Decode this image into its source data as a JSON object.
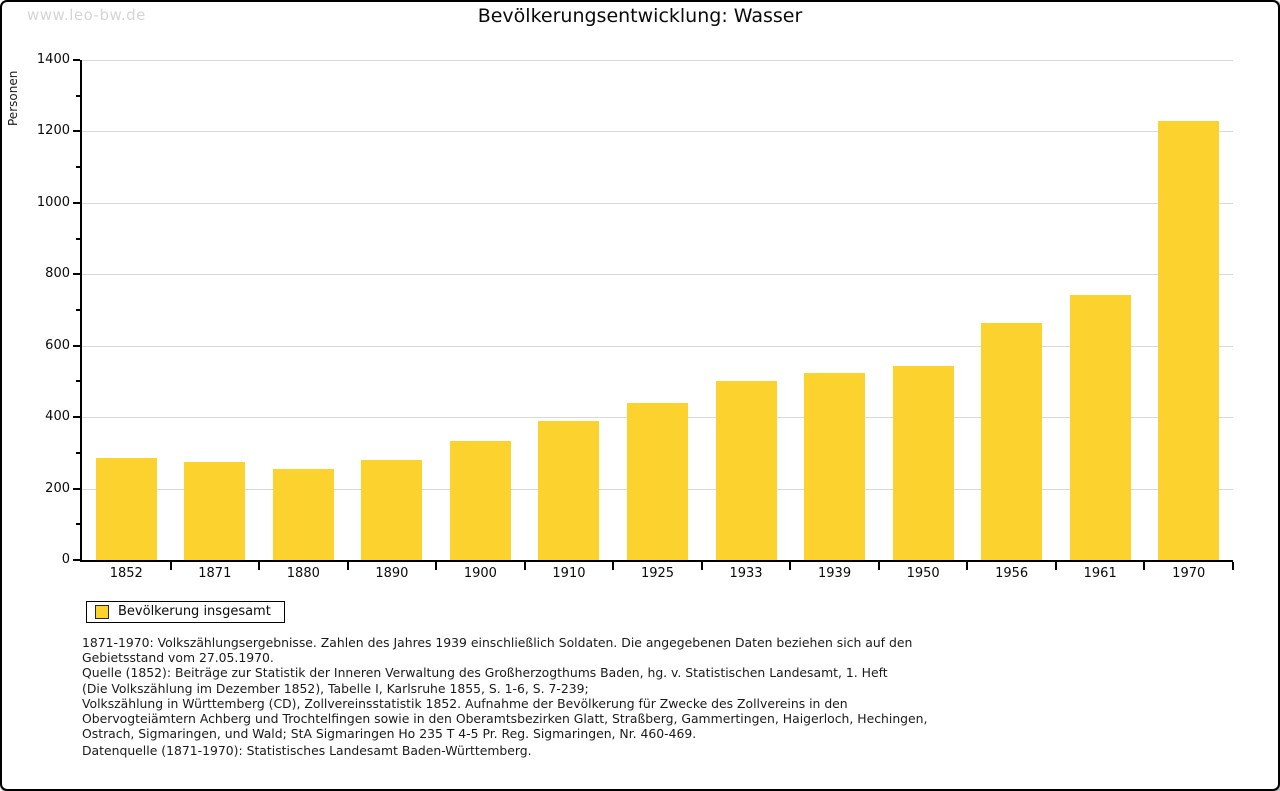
{
  "watermark": "www.leo-bw.de",
  "title": "Bevölkerungsentwicklung: Wasser",
  "legend": {
    "label": "Bevölkerung insgesamt"
  },
  "chart_data": {
    "type": "bar",
    "title": "Bevölkerungsentwicklung: Wasser",
    "xlabel": "",
    "ylabel": "Personen",
    "categories": [
      "1852",
      "1871",
      "1880",
      "1890",
      "1900",
      "1910",
      "1925",
      "1933",
      "1939",
      "1950",
      "1956",
      "1961",
      "1970"
    ],
    "values": [
      286,
      274,
      256,
      281,
      334,
      388,
      439,
      502,
      524,
      544,
      664,
      742,
      1230
    ],
    "series_name": "Bevölkerung insgesamt",
    "ylim": [
      0,
      1400
    ],
    "y_tick_step": 200,
    "y_minor_tick_step": 100,
    "grid": true,
    "legend_position": "bottom-left",
    "bar_color": "#fcd32e"
  },
  "colors": {
    "bar": "#fcd32e",
    "grid": "#d9d9d9",
    "axis": "#000000",
    "watermark": "#d5d5d5"
  },
  "footnotes": {
    "lines": [
      "1871-1970: Volkszählungsergebnisse. Zahlen des Jahres 1939 einschließlich Soldaten. Die angegebenen Daten beziehen sich auf den",
      "Gebietsstand vom 27.05.1970.",
      "Quelle (1852): Beiträge zur Statistik der Inneren Verwaltung des Großherzogthums Baden, hg. v. Statistischen Landesamt, 1. Heft",
      "(Die Volkszählung im Dezember 1852), Tabelle I, Karlsruhe 1855, S. 1-6, S. 7-239;",
      "Volkszählung in Württemberg (CD), Zollvereinsstatistik 1852. Aufnahme der Bevölkerung für Zwecke des Zollvereins in den",
      "Obervogteiämtern Achberg und Trochtelfingen sowie in den Oberamtsbezirken Glatt, Straßberg, Gammertingen, Haigerloch, Hechingen,",
      "Ostrach, Sigmaringen, und Wald; StA Sigmaringen Ho 235 T 4-5 Pr. Reg. Sigmaringen, Nr. 460-469."
    ],
    "datasource": "Datenquelle (1871-1970): Statistisches Landesamt Baden-Württemberg."
  }
}
